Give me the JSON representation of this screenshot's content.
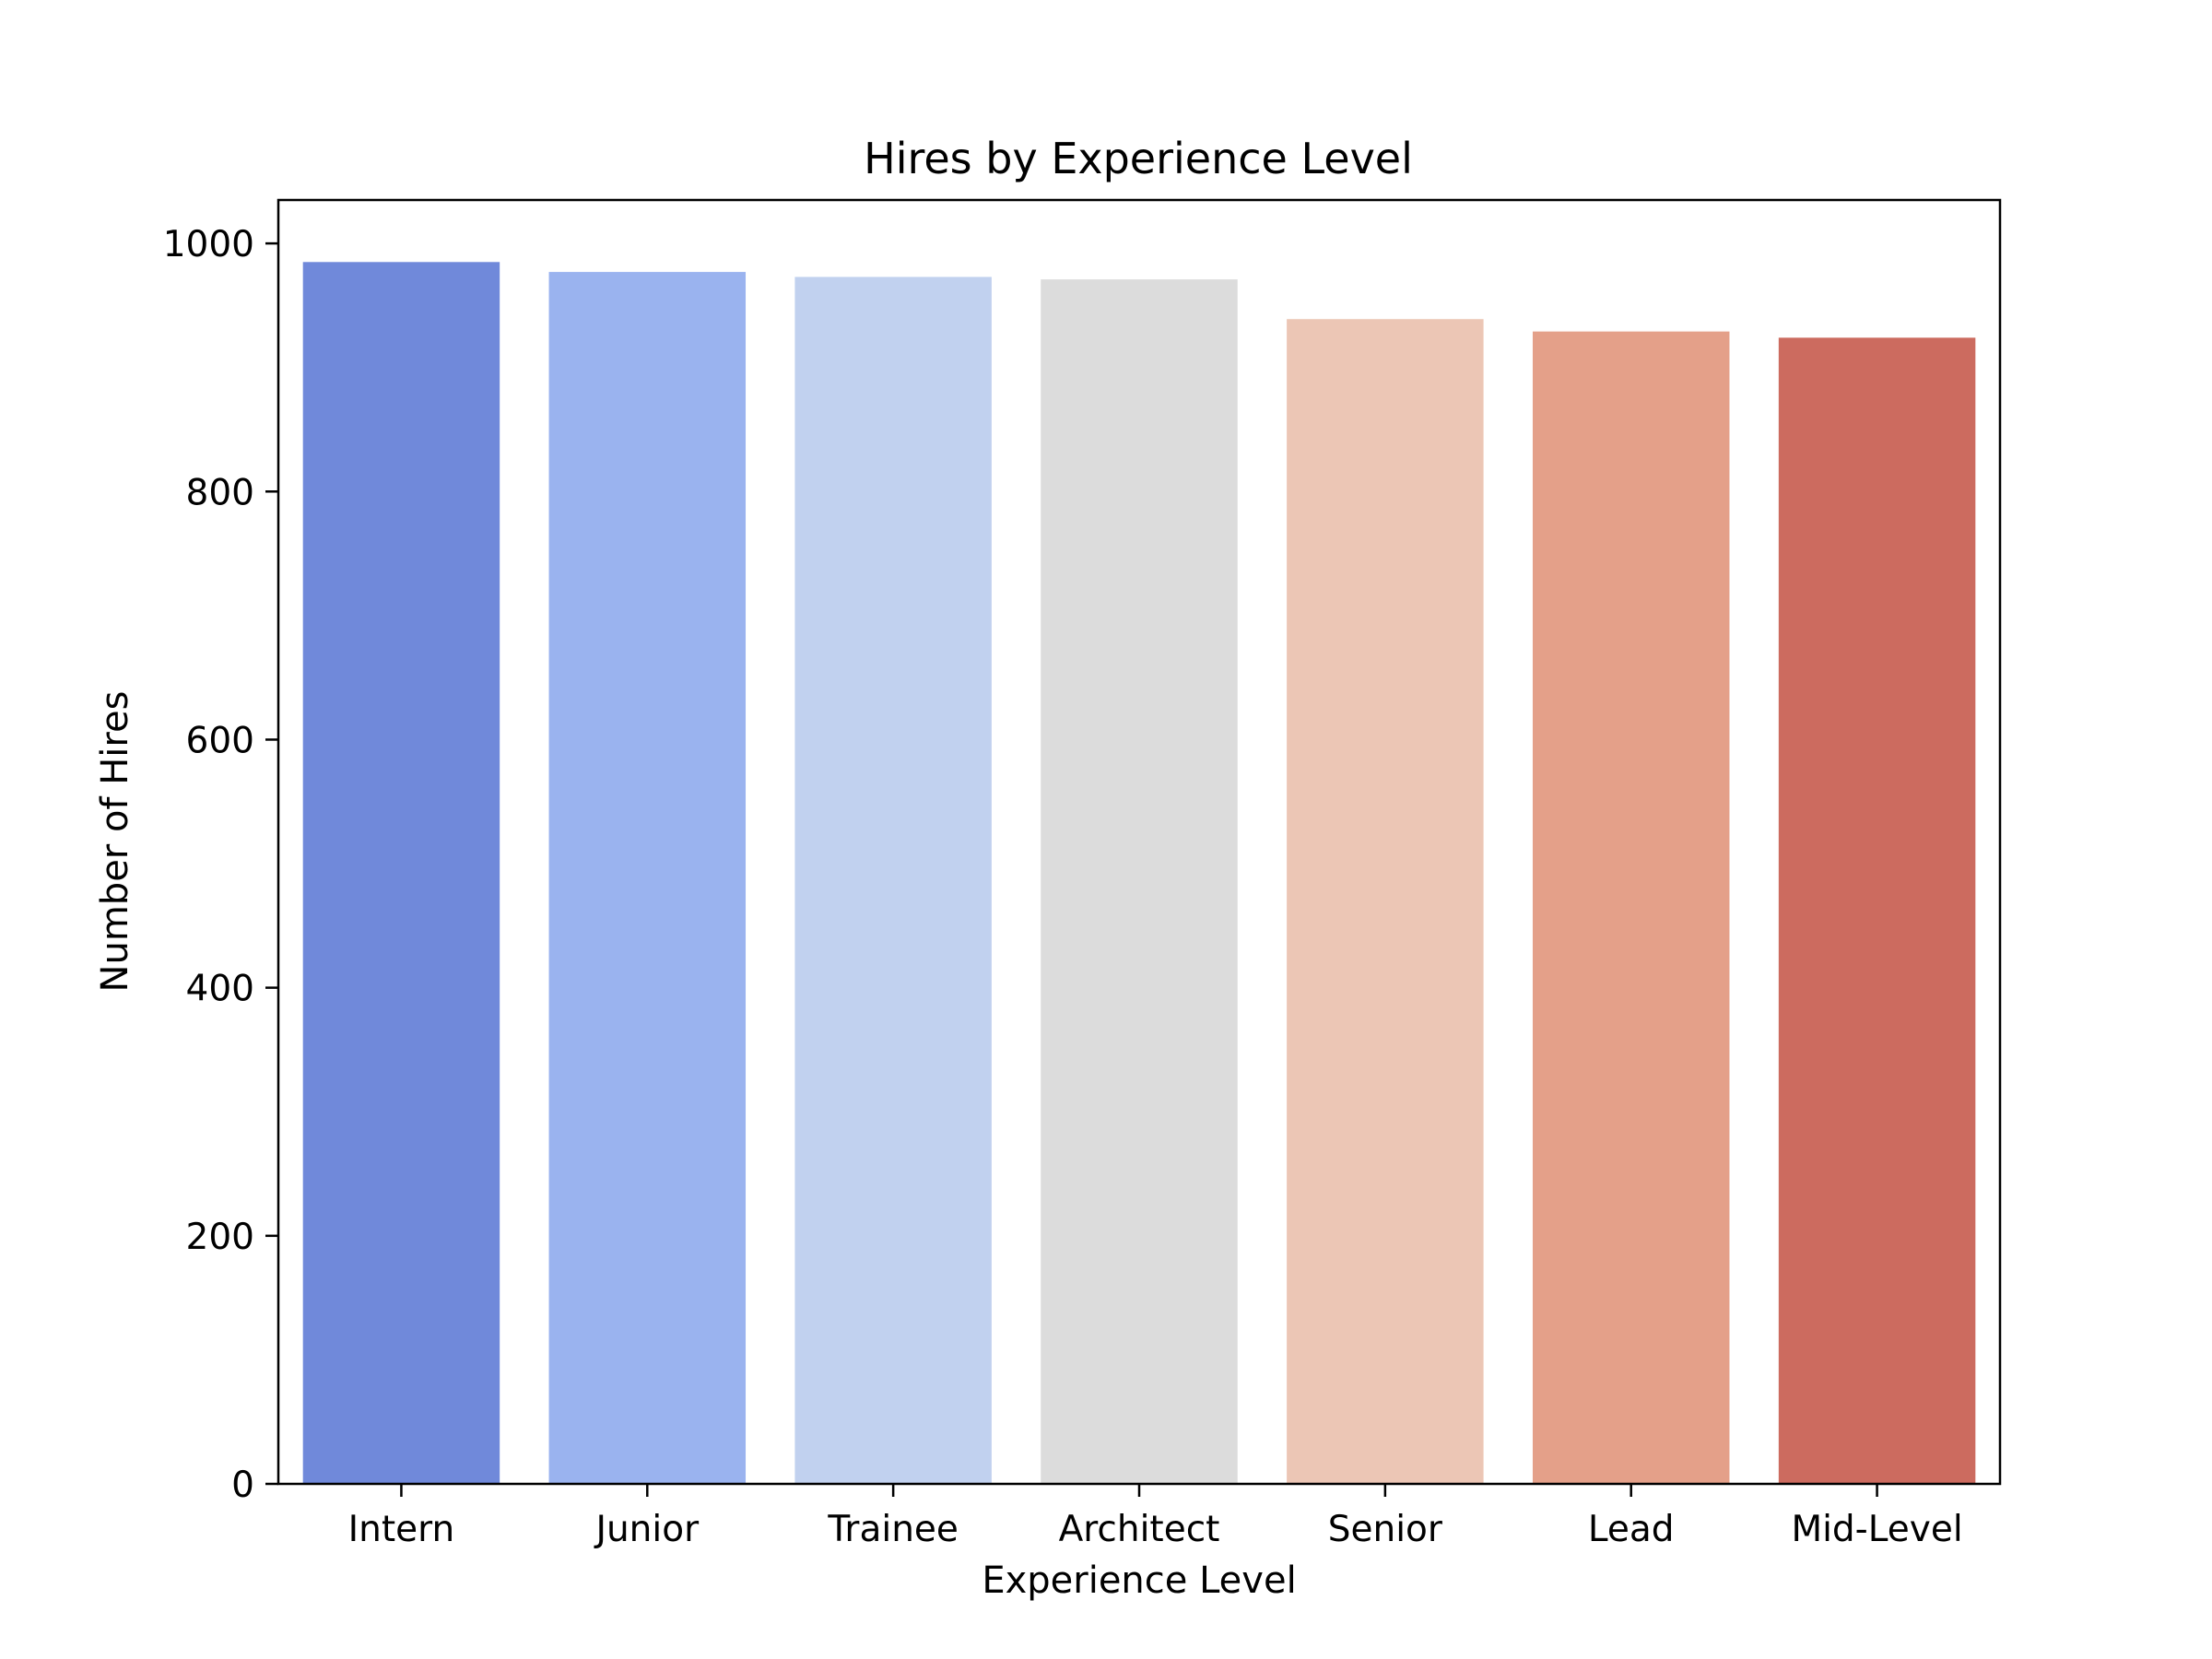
{
  "chart_data": {
    "type": "bar",
    "title": "Hires by Experience Level",
    "xlabel": "Experience Level",
    "ylabel": "Number of Hires",
    "categories": [
      "Intern",
      "Junior",
      "Trainee",
      "Architect",
      "Senior",
      "Lead",
      "Mid-Level"
    ],
    "values": [
      985,
      977,
      973,
      971,
      939,
      929,
      924
    ],
    "colors": [
      "#7089da",
      "#9ab3ef",
      "#c1d1ef",
      "#dcdcdc",
      "#ecc6b5",
      "#e4a089",
      "#cc6b5f"
    ],
    "ylim": [
      0,
      1035
    ],
    "yticks": [
      0,
      200,
      400,
      600,
      800,
      1000
    ],
    "grid": false,
    "legend": "none"
  }
}
